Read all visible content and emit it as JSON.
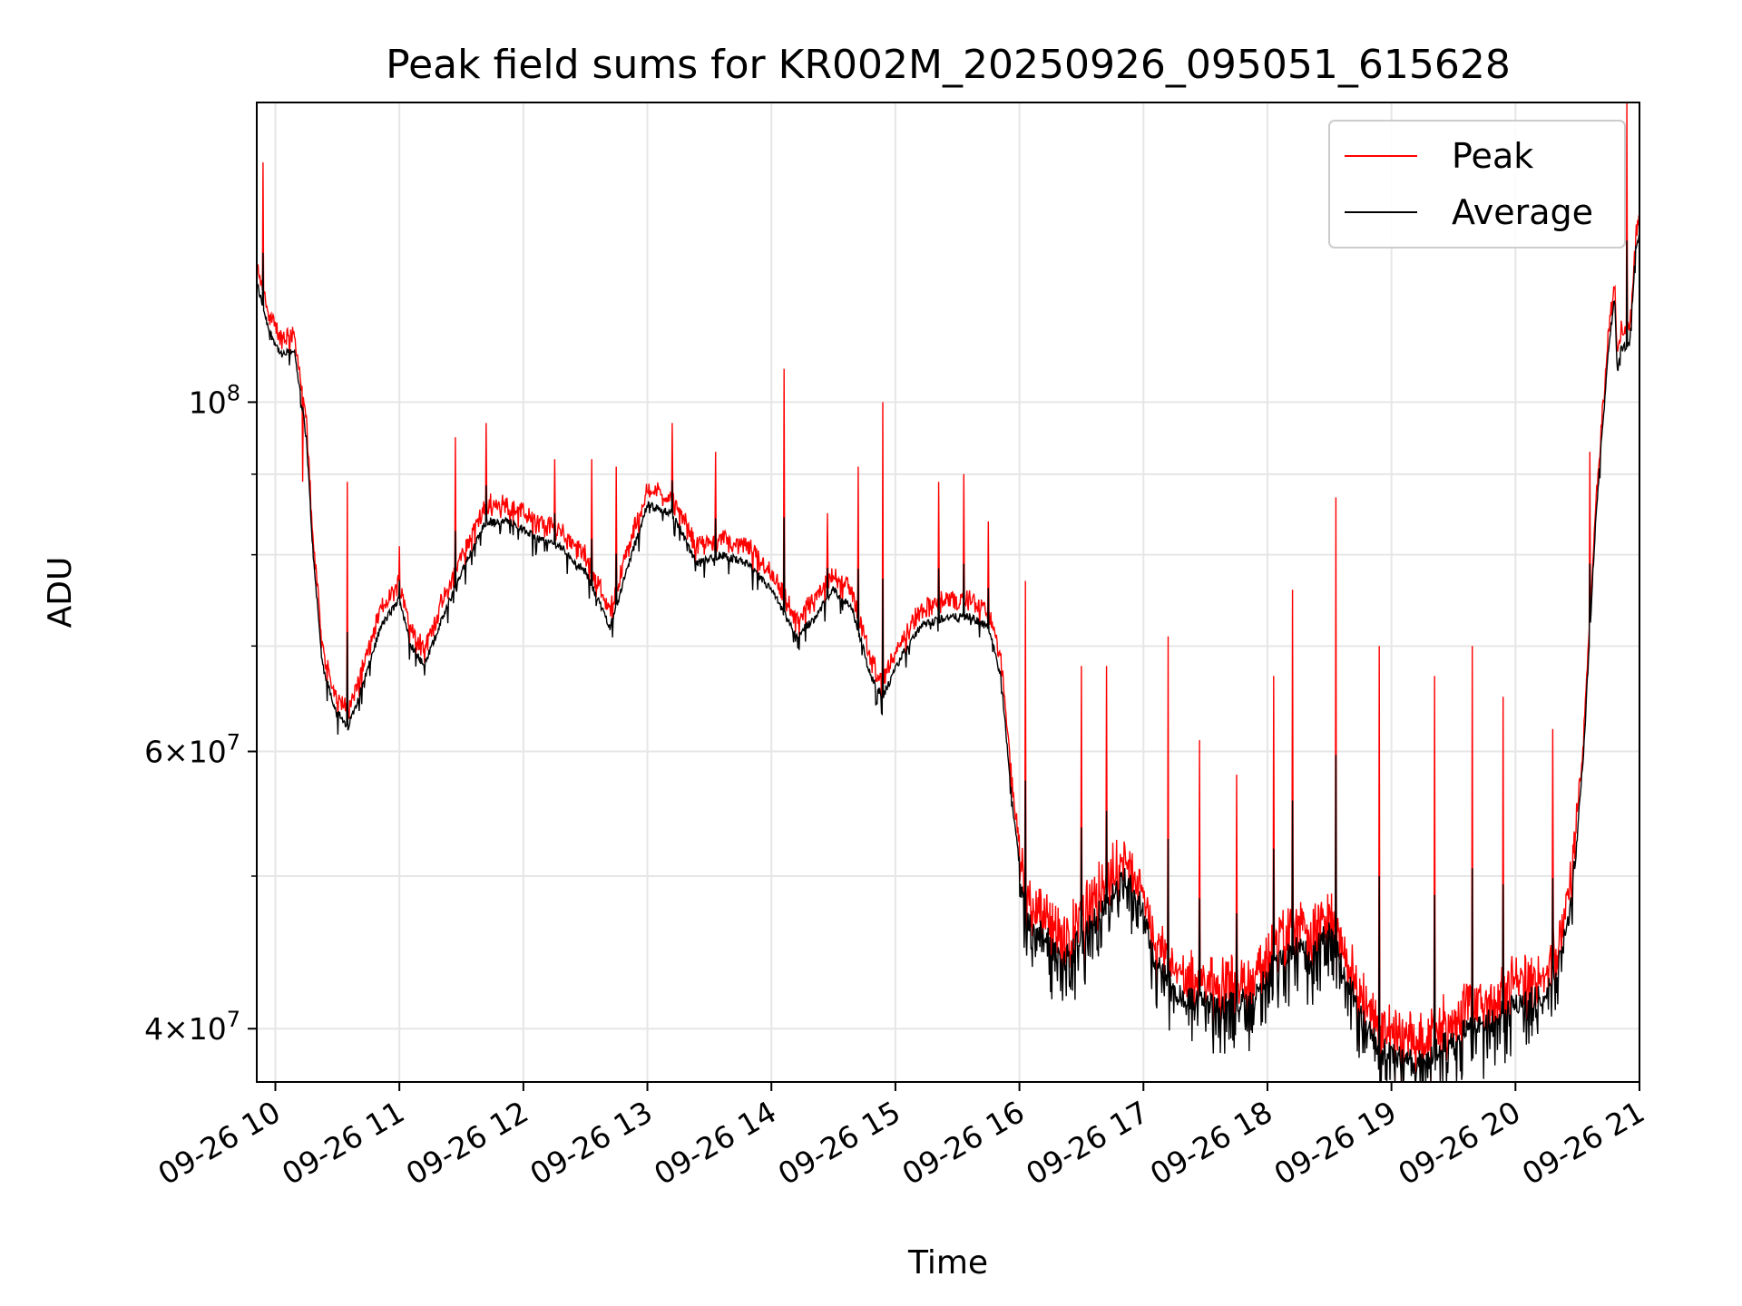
{
  "chart_data": {
    "type": "line",
    "title": "Peak field sums for KR002M_20250926_095051_615628",
    "xlabel": "Time",
    "ylabel": "ADU",
    "yscale": "log",
    "ylim": [
      37000000,
      155000000
    ],
    "xlim": [
      9.85,
      21.0
    ],
    "x_ticks": [
      {
        "value": 10,
        "label": "09-26 10"
      },
      {
        "value": 11,
        "label": "09-26 11"
      },
      {
        "value": 12,
        "label": "09-26 12"
      },
      {
        "value": 13,
        "label": "09-26 13"
      },
      {
        "value": 14,
        "label": "09-26 14"
      },
      {
        "value": 15,
        "label": "09-26 15"
      },
      {
        "value": 16,
        "label": "09-26 16"
      },
      {
        "value": 17,
        "label": "09-26 17"
      },
      {
        "value": 18,
        "label": "09-26 18"
      },
      {
        "value": 19,
        "label": "09-26 19"
      },
      {
        "value": 20,
        "label": "09-26 20"
      },
      {
        "value": 21,
        "label": "09-26 21"
      }
    ],
    "y_ticks_major": [
      {
        "value": 100000000,
        "base": "10",
        "exp": "8",
        "mant": ""
      },
      {
        "value": 60000000,
        "base": "10",
        "exp": "7",
        "mant": "6"
      },
      {
        "value": 40000000,
        "base": "10",
        "exp": "7",
        "mant": "4"
      }
    ],
    "y_ticks_minor": [
      50000000,
      70000000,
      80000000,
      90000000
    ],
    "grid": true,
    "legend": {
      "position": "top-right",
      "entries": [
        {
          "name": "Peak",
          "color": "#ff0000"
        },
        {
          "name": "Average",
          "color": "#000000"
        }
      ]
    },
    "series": [
      {
        "name": "Average",
        "color": "#000000",
        "points": [
          [
            9.85,
            119000000
          ],
          [
            9.95,
            111000000
          ],
          [
            10.05,
            107000000
          ],
          [
            10.15,
            108000000
          ],
          [
            10.25,
            95000000
          ],
          [
            10.3,
            81000000
          ],
          [
            10.38,
            68000000
          ],
          [
            10.48,
            64000000
          ],
          [
            10.58,
            62000000
          ],
          [
            10.7,
            66000000
          ],
          [
            10.85,
            72000000
          ],
          [
            11.0,
            75000000
          ],
          [
            11.1,
            70000000
          ],
          [
            11.2,
            68000000
          ],
          [
            11.35,
            73000000
          ],
          [
            11.5,
            78000000
          ],
          [
            11.7,
            84000000
          ],
          [
            11.9,
            84000000
          ],
          [
            12.1,
            82000000
          ],
          [
            12.3,
            81000000
          ],
          [
            12.5,
            78000000
          ],
          [
            12.7,
            72000000
          ],
          [
            12.85,
            79000000
          ],
          [
            13.0,
            86000000
          ],
          [
            13.2,
            85000000
          ],
          [
            13.4,
            79000000
          ],
          [
            13.6,
            80000000
          ],
          [
            13.8,
            79000000
          ],
          [
            14.0,
            76000000
          ],
          [
            14.2,
            71000000
          ],
          [
            14.35,
            73000000
          ],
          [
            14.5,
            76000000
          ],
          [
            14.65,
            74000000
          ],
          [
            14.8,
            67000000
          ],
          [
            14.9,
            65000000
          ],
          [
            15.05,
            69000000
          ],
          [
            15.2,
            72000000
          ],
          [
            15.4,
            73000000
          ],
          [
            15.6,
            73000000
          ],
          [
            15.75,
            72000000
          ],
          [
            15.85,
            67000000
          ],
          [
            15.95,
            55000000
          ],
          [
            16.05,
            47000000
          ],
          [
            16.2,
            46000000
          ],
          [
            16.35,
            44000000
          ],
          [
            16.5,
            46000000
          ],
          [
            16.7,
            48000000
          ],
          [
            16.85,
            50000000
          ],
          [
            16.95,
            49000000
          ],
          [
            17.1,
            44000000
          ],
          [
            17.3,
            42000000
          ],
          [
            17.5,
            41500000
          ],
          [
            17.7,
            41500000
          ],
          [
            17.9,
            42000000
          ],
          [
            18.05,
            44000000
          ],
          [
            18.2,
            45000000
          ],
          [
            18.35,
            45000000
          ],
          [
            18.5,
            46000000
          ],
          [
            18.65,
            43000000
          ],
          [
            18.8,
            40000000
          ],
          [
            19.0,
            38500000
          ],
          [
            19.2,
            38000000
          ],
          [
            19.4,
            39000000
          ],
          [
            19.6,
            40000000
          ],
          [
            19.8,
            40500000
          ],
          [
            20.0,
            41500000
          ],
          [
            20.2,
            42000000
          ],
          [
            20.35,
            44000000
          ],
          [
            20.45,
            48000000
          ],
          [
            20.55,
            60000000
          ],
          [
            20.65,
            85000000
          ],
          [
            20.75,
            108000000
          ],
          [
            20.8,
            117000000
          ],
          [
            20.82,
            104000000
          ],
          [
            20.85,
            108000000
          ],
          [
            20.92,
            109000000
          ],
          [
            20.97,
            125000000
          ],
          [
            21.0,
            128000000
          ]
        ]
      },
      {
        "name": "Peak",
        "color": "#ff0000",
        "spikes": [
          [
            9.9,
            142000000
          ],
          [
            10.22,
            89000000
          ],
          [
            10.58,
            89000000
          ],
          [
            11.0,
            81000000
          ],
          [
            11.45,
            95000000
          ],
          [
            11.7,
            97000000
          ],
          [
            12.25,
            92000000
          ],
          [
            12.55,
            92000000
          ],
          [
            12.75,
            91000000
          ],
          [
            13.2,
            97000000
          ],
          [
            13.55,
            93000000
          ],
          [
            14.1,
            105000000
          ],
          [
            14.45,
            85000000
          ],
          [
            14.7,
            91000000
          ],
          [
            14.9,
            100000000
          ],
          [
            15.35,
            89000000
          ],
          [
            15.55,
            90000000
          ],
          [
            15.75,
            84000000
          ],
          [
            16.05,
            77000000
          ],
          [
            16.5,
            68000000
          ],
          [
            16.7,
            68000000
          ],
          [
            17.2,
            71000000
          ],
          [
            17.45,
            61000000
          ],
          [
            17.75,
            58000000
          ],
          [
            18.05,
            67000000
          ],
          [
            18.2,
            76000000
          ],
          [
            18.55,
            87000000
          ],
          [
            18.9,
            70000000
          ],
          [
            19.35,
            67000000
          ],
          [
            19.65,
            70000000
          ],
          [
            19.9,
            65000000
          ],
          [
            20.3,
            62000000
          ],
          [
            20.6,
            93000000
          ],
          [
            20.9,
            160000000
          ]
        ]
      }
    ]
  }
}
